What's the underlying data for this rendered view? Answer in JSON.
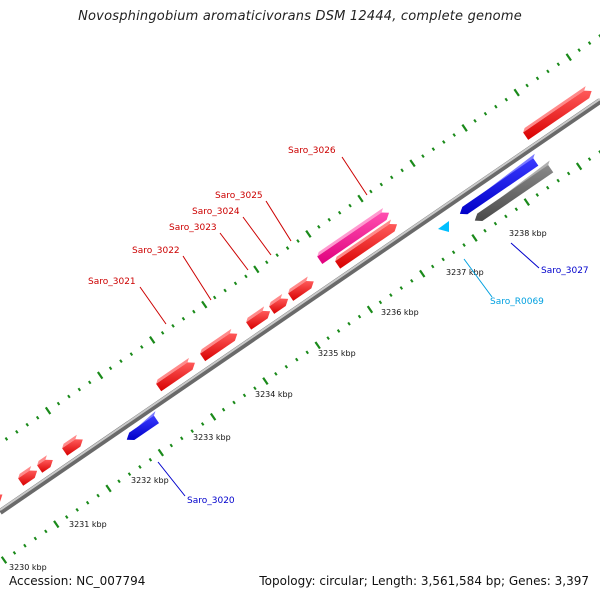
{
  "title": "Novosphingobium aromaticivorans DSM 12444, complete genome",
  "footer": {
    "accession": "Accession: NC_007794",
    "summary": "Topology: circular; Length: 3,561,584 bp; Genes: 3,397"
  },
  "colors": {
    "forward_gene": "#ff0000",
    "reverse_gene": "#0000ff",
    "pseudo_gene": "#ff1493",
    "rna_gene": "#00bfff",
    "other_feature": "#666666",
    "backbone": "#999999",
    "tick": "#1a7a1a"
  },
  "scale_labels": [
    "3230 kbp",
    "3231 kbp",
    "3232 kbp",
    "3233 kbp",
    "3234 kbp",
    "3235 kbp",
    "3236 kbp",
    "3237 kbp",
    "3238 kbp"
  ],
  "gene_labels": [
    {
      "id": "g3021",
      "text": "Saro_3021",
      "color": "red"
    },
    {
      "id": "g3022",
      "text": "Saro_3022",
      "color": "red"
    },
    {
      "id": "g3023",
      "text": "Saro_3023",
      "color": "red"
    },
    {
      "id": "g3024",
      "text": "Saro_3024",
      "color": "red"
    },
    {
      "id": "g3025",
      "text": "Saro_3025",
      "color": "red"
    },
    {
      "id": "g3026",
      "text": "Saro_3026",
      "color": "red"
    },
    {
      "id": "g3020",
      "text": "Saro_3020",
      "color": "blue"
    },
    {
      "id": "r0069",
      "text": "Saro_R0069",
      "color": "cyan"
    },
    {
      "id": "g3027",
      "text": "Saro_3027",
      "color": "blue"
    }
  ]
}
